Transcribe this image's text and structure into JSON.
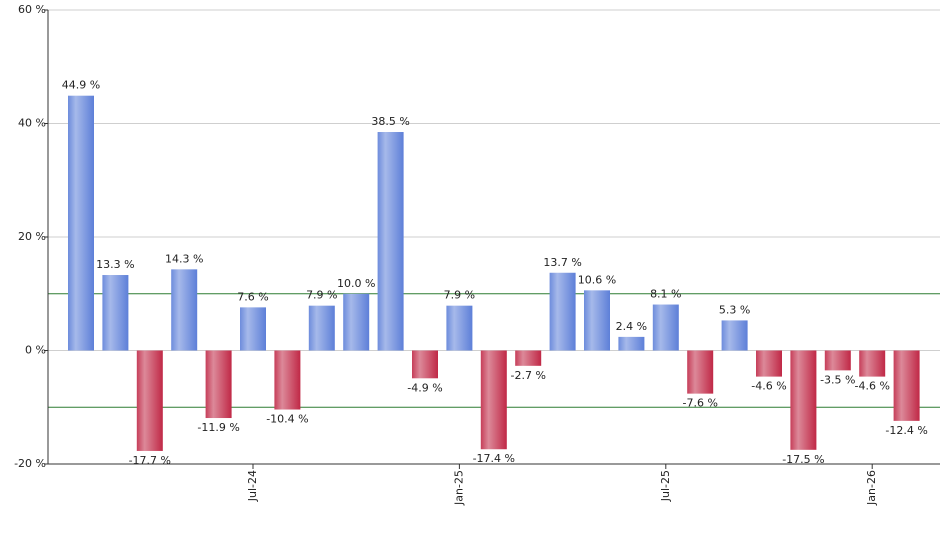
{
  "chart_data": {
    "type": "bar",
    "categories": [
      null,
      null,
      null,
      null,
      null,
      "Jul-24",
      null,
      null,
      null,
      null,
      null,
      "Jan-25",
      null,
      null,
      null,
      null,
      null,
      "Jul-25",
      null,
      null,
      null,
      null,
      null,
      "Jan-26",
      null
    ],
    "values": [
      44.9,
      13.3,
      -17.7,
      14.3,
      -11.9,
      7.6,
      -10.4,
      7.9,
      10.0,
      38.5,
      -4.9,
      7.9,
      -17.4,
      -2.7,
      13.7,
      10.6,
      2.4,
      8.1,
      -7.6,
      5.3,
      -4.6,
      -17.5,
      -3.5,
      -4.6,
      -12.4
    ],
    "value_labels": [
      "44.9 %",
      "13.3 %",
      "-17.7 %",
      "14.3 %",
      "-11.9 %",
      "7.6 %",
      "-10.4 %",
      "7.9 %",
      "10.0 %",
      "38.5 %",
      "-4.9 %",
      "7.9 %",
      "-17.4 %",
      "-2.7 %",
      "13.7 %",
      "10.6 %",
      "2.4 %",
      "8.1 %",
      "-7.6 %",
      "5.3 %",
      "-4.6 %",
      "-17.5 %",
      "-3.5 %",
      "-4.6 %",
      "-12.4 %"
    ],
    "positive_color": "#5d7fd8",
    "negative_color": "#c02846",
    "ylim": [
      -20,
      60
    ],
    "yticks": [
      {
        "value": -20,
        "label": "-20 %"
      },
      {
        "value": 0,
        "label": "0 %"
      },
      {
        "value": 20,
        "label": "20 %"
      },
      {
        "value": 40,
        "label": "40 %"
      },
      {
        "value": 60,
        "label": "60 %"
      }
    ],
    "reference_lines": [
      10,
      -10
    ],
    "reference_color": "#2e7d32",
    "grid": true
  }
}
